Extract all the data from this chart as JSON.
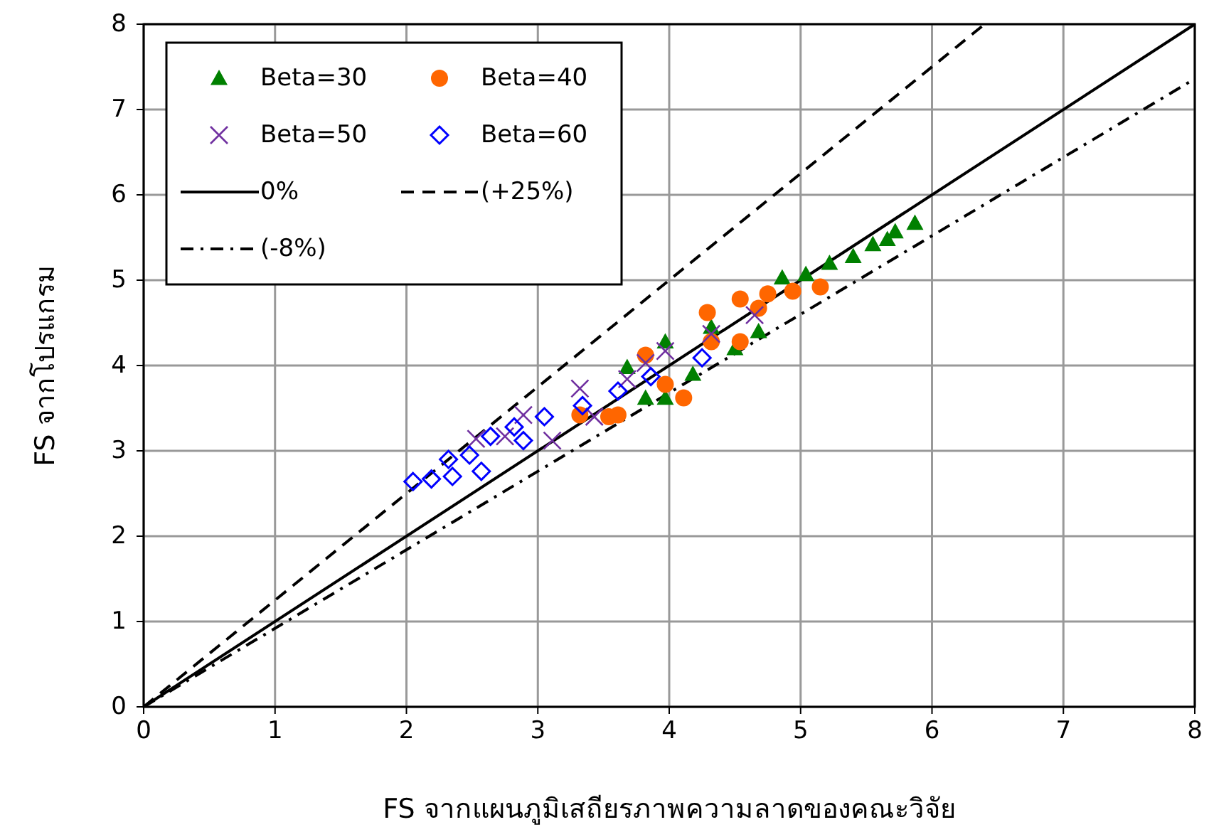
{
  "chart_data": {
    "type": "scatter",
    "xlabel": "FS จากแผนภูมิเสถียรภาพความลาดของคณะวิจัย",
    "ylabel": "FS จากโปรแกรม",
    "xlim": [
      0,
      8
    ],
    "ylim": [
      0,
      8
    ],
    "xticks": [
      0,
      1,
      2,
      3,
      4,
      5,
      6,
      7,
      8
    ],
    "yticks": [
      0,
      1,
      2,
      3,
      4,
      5,
      6,
      7,
      8
    ],
    "grid": true,
    "legend": "top left",
    "series": [
      {
        "name": "Beta=30",
        "color": "#008000",
        "marker": "triangle",
        "x": [
          3.68,
          3.82,
          3.97,
          3.97,
          4.18,
          4.32,
          4.5,
          4.68,
          4.86,
          5.04,
          5.22,
          5.4,
          5.55,
          5.66,
          5.72,
          5.87
        ],
        "values": [
          3.98,
          3.62,
          4.28,
          3.62,
          3.9,
          4.45,
          4.2,
          4.4,
          5.03,
          5.07,
          5.2,
          5.28,
          5.42,
          5.48,
          5.57,
          5.67
        ]
      },
      {
        "name": "Beta=40",
        "color": "#ff6600",
        "marker": "circle",
        "x": [
          3.32,
          3.54,
          3.61,
          3.82,
          3.97,
          4.11,
          4.29,
          4.32,
          4.54,
          4.54,
          4.68,
          4.75,
          4.94,
          5.15
        ],
        "values": [
          3.42,
          3.4,
          3.42,
          4.12,
          3.78,
          3.62,
          4.62,
          4.28,
          4.28,
          4.78,
          4.67,
          4.84,
          4.87,
          4.92
        ]
      },
      {
        "name": "Beta=50",
        "color": "#7030a0",
        "marker": "cross",
        "x": [
          2.53,
          2.75,
          2.89,
          3.11,
          3.32,
          3.43,
          3.68,
          3.82,
          3.97,
          4.32,
          4.65
        ],
        "values": [
          3.14,
          3.17,
          3.42,
          3.12,
          3.73,
          3.4,
          3.84,
          4.03,
          4.17,
          4.37,
          4.59
        ]
      },
      {
        "name": "Beta=60",
        "color": "#0000ff",
        "marker": "diamond",
        "x": [
          2.05,
          2.19,
          2.35,
          2.32,
          2.48,
          2.57,
          2.64,
          2.82,
          2.89,
          3.05,
          3.34,
          3.61,
          3.86,
          4.25
        ],
        "values": [
          2.64,
          2.67,
          2.7,
          2.9,
          2.95,
          2.76,
          3.17,
          3.28,
          3.12,
          3.4,
          3.53,
          3.7,
          3.87,
          4.09
        ]
      },
      {
        "name": "0%",
        "type": "line",
        "color": "#000000",
        "line_style": "solid",
        "marker": "none",
        "x": [
          0,
          8
        ],
        "values": [
          0,
          8
        ]
      },
      {
        "name": "(+25%)",
        "type": "line",
        "color": "#000000",
        "line_style": "dashed",
        "marker": "none",
        "x": [
          0,
          6.4
        ],
        "values": [
          0,
          8
        ]
      },
      {
        "name": "(-8%)",
        "type": "line",
        "color": "#000000",
        "line_style": "dashdot",
        "marker": "none",
        "x": [
          0,
          8
        ],
        "values": [
          0,
          7.36
        ]
      }
    ]
  }
}
